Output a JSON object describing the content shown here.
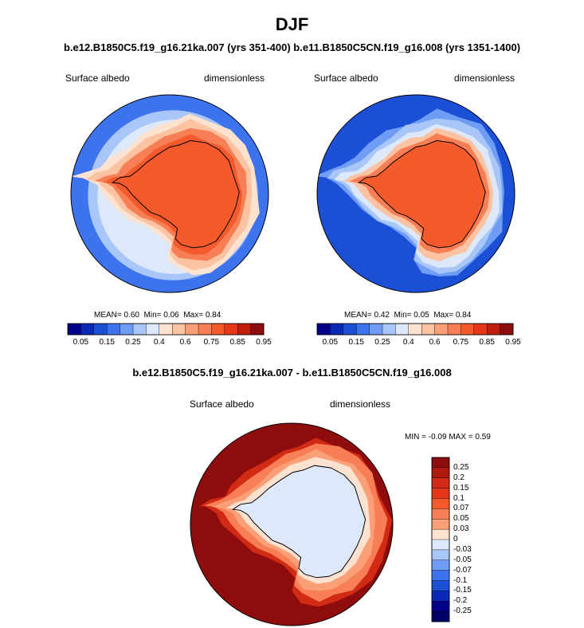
{
  "page": {
    "title": "DJF",
    "subtitle": "b.e12.B1850C5.f19_g16.21ka.007 (yrs 351-400) b.e11.B1850C5CN.f19_g16.008 (yrs 1351-1400)",
    "diff_title": "b.e12.B1850C5.f19_g16.21ka.007 - b.e11.B1850C5CN.f19_g16.008"
  },
  "chart_data": [
    {
      "type": "heatmap",
      "projection": "south-polar-stereographic",
      "variable": "Surface albedo",
      "units": "dimensionless",
      "case": "b.e12.B1850C5.f19_g16.21ka.007 (yrs 351-400)",
      "stats": {
        "mean_label": "MEAN=",
        "mean": "0.60",
        "min_label": "Min=",
        "min": "0.06",
        "max_label": "Max=",
        "max": "0.84"
      },
      "colorbar": {
        "levels": [
          "0.05",
          "0.15",
          "0.25",
          "0.4",
          "0.6",
          "0.75",
          "0.85",
          "0.95"
        ],
        "colors": [
          "#00008b",
          "#0a2ab5",
          "#1a4fd6",
          "#3d74ee",
          "#6f9cf4",
          "#a8c6f7",
          "#dde9fb",
          "#fde2cf",
          "#fcc3a3",
          "#fb9f78",
          "#f87f55",
          "#f55a2c",
          "#e5371a",
          "#c01f10",
          "#8f0c0c"
        ]
      },
      "fields": {
        "ocean_color": "#3d74ee",
        "ice_outer_color": "#dde9fb",
        "ice_mid_color": "#fcc3a3",
        "continent_color": "#f55a2c"
      }
    },
    {
      "type": "heatmap",
      "projection": "south-polar-stereographic",
      "variable": "Surface albedo",
      "units": "dimensionless",
      "case": "b.e11.B1850C5CN.f19_g16.008 (yrs 1351-1400)",
      "stats": {
        "mean_label": "MEAN=",
        "mean": "0.42",
        "min_label": "Min=",
        "min": "0.05",
        "max_label": "Max=",
        "max": "0.84"
      },
      "colorbar": {
        "levels": [
          "0.05",
          "0.15",
          "0.25",
          "0.4",
          "0.6",
          "0.75",
          "0.85",
          "0.95"
        ],
        "colors": [
          "#00008b",
          "#0a2ab5",
          "#1a4fd6",
          "#3d74ee",
          "#6f9cf4",
          "#a8c6f7",
          "#dde9fb",
          "#fde2cf",
          "#fcc3a3",
          "#fb9f78",
          "#f87f55",
          "#f55a2c",
          "#e5371a",
          "#c01f10",
          "#8f0c0c"
        ]
      },
      "fields": {
        "ocean_color": "#1a4fd6",
        "ice_outer_color": "#dde9fb",
        "ice_mid_color": "#fcc3a3",
        "continent_color": "#f55a2c"
      }
    },
    {
      "type": "heatmap",
      "projection": "south-polar-stereographic",
      "variable": "Surface albedo",
      "units": "dimensionless",
      "case": "difference",
      "stats": {
        "min_label": "MIN =",
        "min": "-0.09",
        "max_label": "MAX =",
        "max": "0.59"
      },
      "colorbar": {
        "levels": [
          "0.25",
          "0.2",
          "0.15",
          "0.1",
          "0.07",
          "0.05",
          "0.03",
          "0",
          "-0.03",
          "-0.05",
          "-0.07",
          "-0.1",
          "-0.15",
          "-0.2",
          "-0.25"
        ],
        "colors": [
          "#8f0c0c",
          "#b01a0e",
          "#d12b15",
          "#e5371a",
          "#f55a2c",
          "#f87f55",
          "#fb9f78",
          "#fde2cf",
          "#dde9fb",
          "#a8c6f7",
          "#6f9cf4",
          "#3d74ee",
          "#1a4fd6",
          "#0a2ab5",
          "#00008b",
          "#00006b"
        ]
      },
      "fields": {
        "ocean_color": "#8f0c0c",
        "ring_color": "#d12b15",
        "ice_color": "#f87f55",
        "continent_color": "#dde9fb"
      }
    }
  ]
}
